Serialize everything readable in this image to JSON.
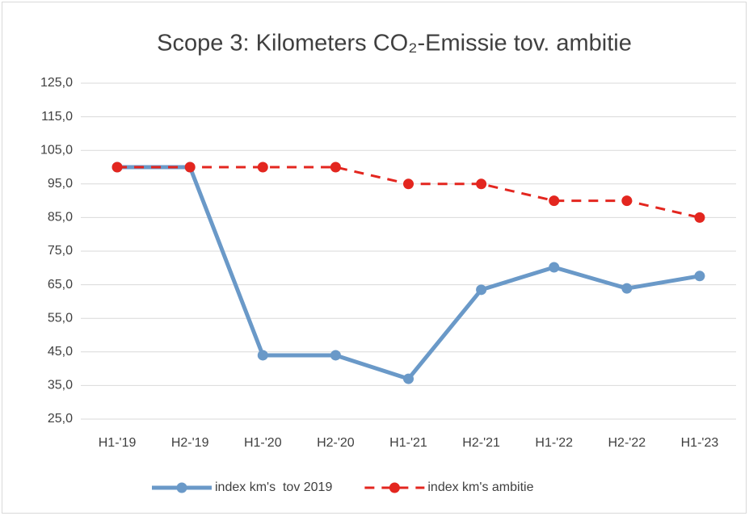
{
  "chart_data": {
    "type": "line",
    "title": "Scope 3: Kilometers CO₂-Emissie tov. ambitie",
    "categories": [
      "H1-'19",
      "H2-'19",
      "H1-'20",
      "H2-'20",
      "H1-'21",
      "H2-'21",
      "H1-'22",
      "H2-'22",
      "H1-'23"
    ],
    "series": [
      {
        "name": "index km's  tov 2019",
        "color": "#6a99c8",
        "dashed": false,
        "values": [
          100,
          100,
          44,
          44,
          37,
          63.5,
          70.2,
          63.9,
          67.6
        ]
      },
      {
        "name": "index km's ambitie",
        "color": "#e3261f",
        "dashed": true,
        "values": [
          100,
          100,
          100,
          100,
          95,
          95,
          90,
          90,
          85
        ]
      }
    ],
    "ylim": [
      25,
      125
    ],
    "yticks": [
      {
        "value": 25,
        "label": "25,0"
      },
      {
        "value": 35,
        "label": "35,0"
      },
      {
        "value": 45,
        "label": "45,0"
      },
      {
        "value": 55,
        "label": "55,0"
      },
      {
        "value": 65,
        "label": "65,0"
      },
      {
        "value": 75,
        "label": "75,0"
      },
      {
        "value": 85,
        "label": "85,0"
      },
      {
        "value": 95,
        "label": "95,0"
      },
      {
        "value": 105,
        "label": "105,0"
      },
      {
        "value": 115,
        "label": "115,0"
      },
      {
        "value": 125,
        "label": "125,0"
      }
    ],
    "grid": true,
    "legend": "bottom"
  }
}
